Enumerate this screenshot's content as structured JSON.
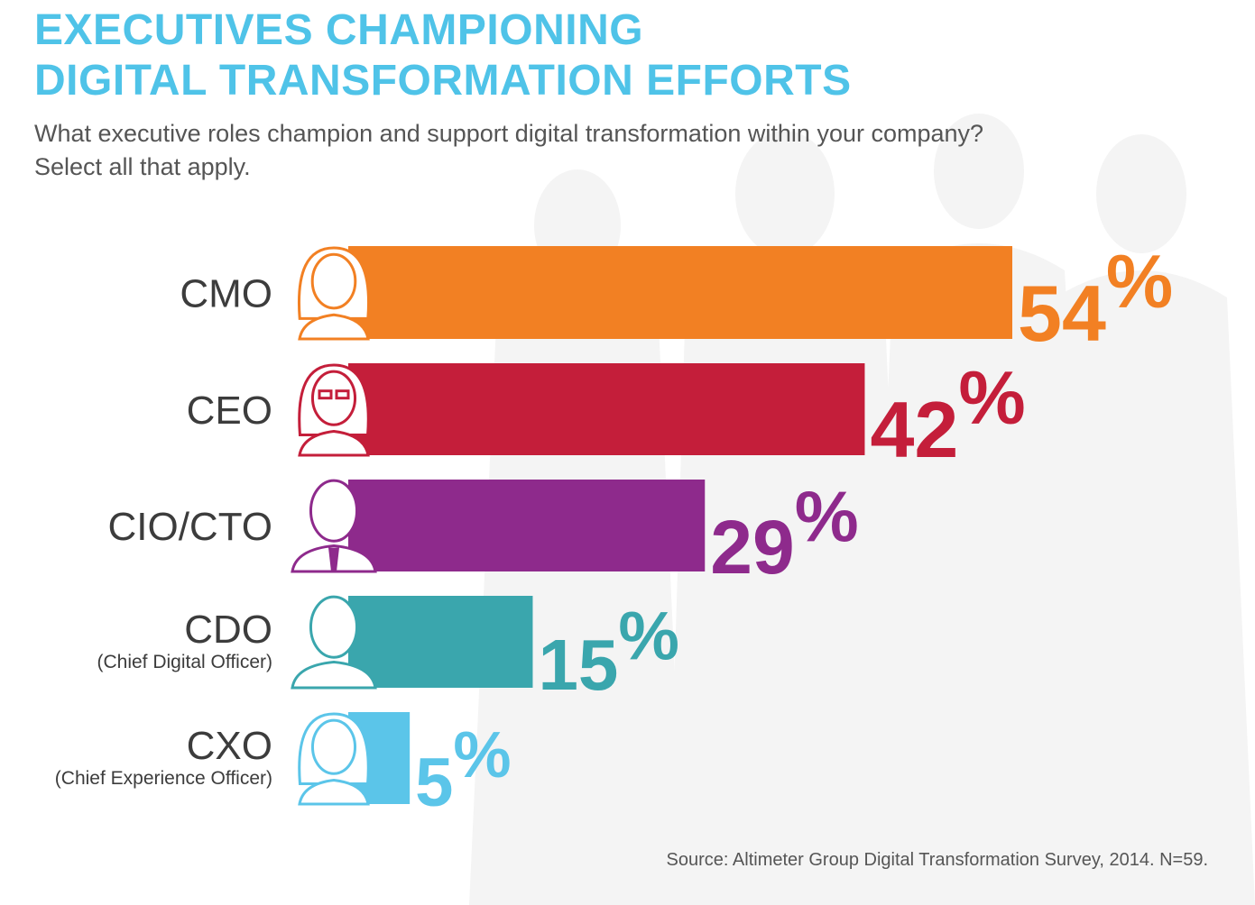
{
  "header": {
    "title_line1": "EXECUTIVES CHAMPIONING",
    "title_line2": "DIGITAL TRANSFORMATION EFFORTS",
    "question_line1": "What executive roles champion and support digital transformation within your company?",
    "question_line2": "Select all that apply."
  },
  "colors": {
    "title": "#4fc3e8",
    "text": "#555555",
    "cmo": "#f28023",
    "ceo": "#c41e3a",
    "cio_cto": "#8e2a8c",
    "cdo": "#3aa6ad",
    "cxo": "#5bc5e9"
  },
  "chart_data": {
    "type": "bar",
    "orientation": "horizontal",
    "categories": [
      "CMO",
      "CEO",
      "CIO/CTO",
      "CDO",
      "CXO"
    ],
    "sublabels": [
      "",
      "",
      "",
      "(Chief Digital Officer)",
      "(Chief Experience Officer)"
    ],
    "values": [
      54,
      42,
      29,
      15,
      5
    ],
    "value_unit": "%",
    "colors": [
      "#f28023",
      "#c41e3a",
      "#8e2a8c",
      "#3aa6ad",
      "#5bc5e9"
    ],
    "icons": [
      "woman-avatar-icon",
      "woman-glasses-avatar-icon",
      "man-tie-avatar-icon",
      "man-avatar-icon",
      "woman-avatar-icon"
    ],
    "title": "EXECUTIVES CHAMPIONING DIGITAL TRANSFORMATION EFFORTS",
    "xlabel": "",
    "ylabel": "",
    "xlim": [
      0,
      54
    ],
    "grid": false,
    "legend": "none"
  },
  "footer": {
    "source": "Source: Altimeter Group Digital Transformation Survey, 2014. N=59."
  }
}
